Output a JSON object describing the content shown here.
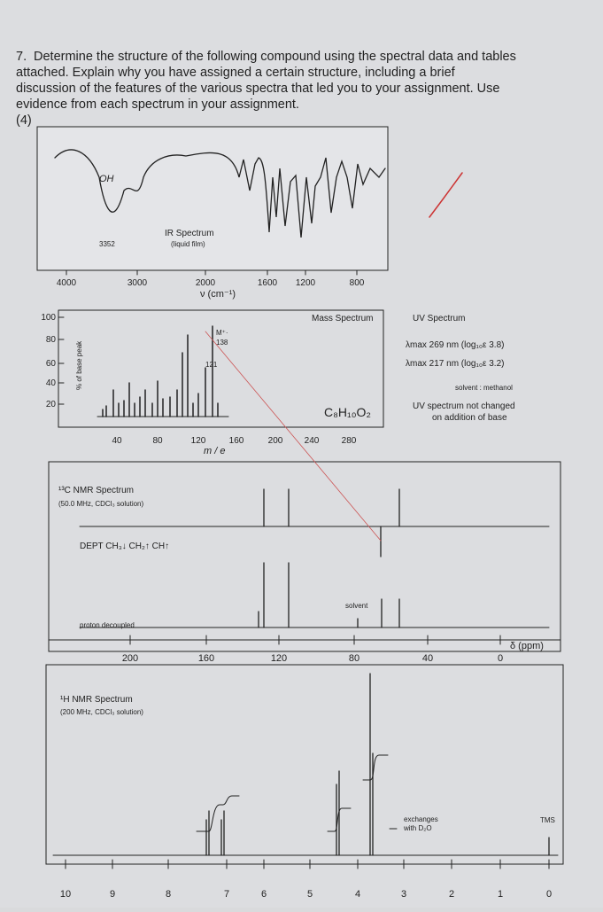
{
  "question": {
    "number": "7.",
    "lines": [
      "Determine the structure of the following compound using the spectral data and tables",
      "attached. Explain why you have assigned a certain structure, including a brief",
      "discussion of the features of the various spectra that led you to your assignment. Use",
      "evidence from each spectrum in your assignment."
    ],
    "marks": "(4)"
  },
  "ir": {
    "title": "IR Spectrum",
    "subtitle": "(liquid film)",
    "oh_label": "OH",
    "peak_label": "3352",
    "ticks": [
      "4000",
      "3000",
      "2000",
      "1600",
      "1200",
      "800"
    ],
    "axis_label": "ν (cm⁻¹)"
  },
  "mass": {
    "title": "Mass Spectrum",
    "y_label": "% of base peak",
    "y_ticks": [
      "100",
      "80",
      "60",
      "40",
      "20"
    ],
    "x_ticks": [
      "40",
      "80",
      "120",
      "160",
      "200",
      "240",
      "280"
    ],
    "x_label": "m / e",
    "molecular_ion": "M⁺·",
    "m_value": "138",
    "peak_label": "121",
    "formula": "C₈H₁₀O₂"
  },
  "uv": {
    "title": "UV Spectrum",
    "lines": [
      "λmax 269 nm (log₁₀ε 3.8)",
      "λmax 217 nm (log₁₀ε 3.2)"
    ],
    "solvent": "solvent : methanol",
    "note": [
      "UV spectrum not changed",
      "on addition of base"
    ]
  },
  "c13": {
    "title": "¹³C NMR Spectrum",
    "subtitle": "(50.0 MHz, CDCl₃ solution)",
    "dept": "DEPT  CH₃↓ CH₂↑ CH↑",
    "proton": "proton decoupled",
    "solvent": "solvent",
    "ticks": [
      "200",
      "160",
      "120",
      "80",
      "40",
      "0"
    ],
    "unit": "δ (ppm)"
  },
  "h1": {
    "title": "¹H NMR Spectrum",
    "subtitle": "(200 MHz, CDCl₃ solution)",
    "exchange": [
      "exchanges",
      "with D₂O"
    ],
    "tms": "TMS",
    "ticks": [
      "10",
      "9",
      "8",
      "7",
      "6",
      "5",
      "4",
      "3",
      "2",
      "1",
      "0"
    ]
  }
}
